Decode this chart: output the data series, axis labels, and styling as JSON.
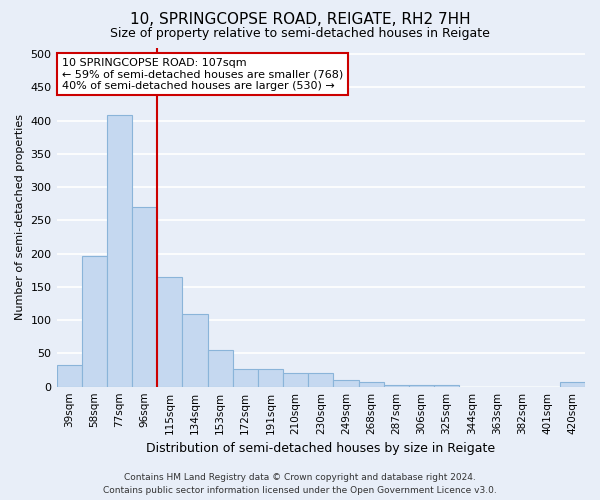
{
  "title": "10, SPRINGCOPSE ROAD, REIGATE, RH2 7HH",
  "subtitle": "Size of property relative to semi-detached houses in Reigate",
  "xlabel": "Distribution of semi-detached houses by size in Reigate",
  "ylabel": "Number of semi-detached properties",
  "categories": [
    "39sqm",
    "58sqm",
    "77sqm",
    "96sqm",
    "115sqm",
    "134sqm",
    "153sqm",
    "172sqm",
    "191sqm",
    "210sqm",
    "230sqm",
    "249sqm",
    "268sqm",
    "287sqm",
    "306sqm",
    "325sqm",
    "344sqm",
    "363sqm",
    "382sqm",
    "401sqm",
    "420sqm"
  ],
  "values": [
    33,
    197,
    408,
    270,
    165,
    110,
    55,
    26,
    26,
    20,
    20,
    10,
    7,
    3,
    3,
    3,
    0,
    0,
    0,
    0,
    7
  ],
  "bar_color": "#c5d8f0",
  "bar_edge_color": "#8ab4d9",
  "vline_x": 3.5,
  "vline_color": "#cc0000",
  "annotation_line1": "10 SPRINGCOPSE ROAD: 107sqm",
  "annotation_line2": "← 59% of semi-detached houses are smaller (768)",
  "annotation_line3": "40% of semi-detached houses are larger (530) →",
  "annotation_box_facecolor": "#ffffff",
  "annotation_box_edgecolor": "#cc0000",
  "ylim": [
    0,
    510
  ],
  "yticks": [
    0,
    50,
    100,
    150,
    200,
    250,
    300,
    350,
    400,
    450,
    500
  ],
  "background_color": "#e8eef8",
  "grid_color": "#ffffff",
  "title_fontsize": 11,
  "subtitle_fontsize": 9,
  "ylabel_fontsize": 8,
  "xlabel_fontsize": 9,
  "tick_fontsize": 8,
  "footer": "Contains HM Land Registry data © Crown copyright and database right 2024.\nContains public sector information licensed under the Open Government Licence v3.0.",
  "footer_fontsize": 6.5
}
